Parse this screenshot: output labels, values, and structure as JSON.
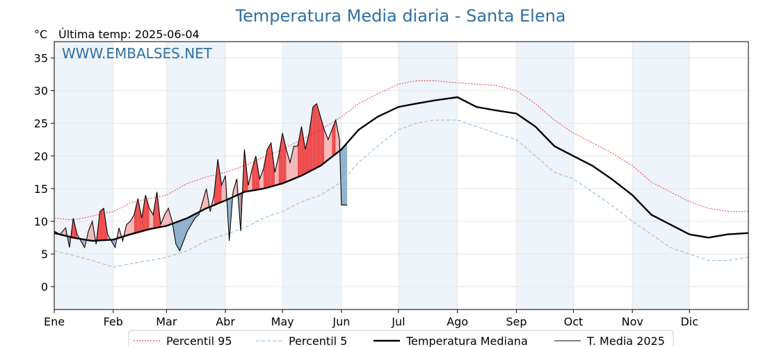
{
  "title": "Temperatura Media diaria - Santa Elena",
  "unit_label": "°C",
  "last_temp_label": "Última temp: 2025-06-04",
  "watermark": "WWW.EMBALSES.NET",
  "colors": {
    "p95": "#e8231f",
    "p5": "#9cc9dc",
    "median": "#000000",
    "current": "#000000",
    "above_fill": "#f4b8b9",
    "above_strong": "#ee4d4f",
    "below_fill": "#8fb1cd",
    "title": "#2f6fa3",
    "band": "#eef4fa"
  },
  "legend": [
    {
      "label": "Percentil 95",
      "style": "p95"
    },
    {
      "label": "Percentil 5",
      "style": "p5"
    },
    {
      "label": "Temperatura Mediana",
      "style": "median"
    },
    {
      "label": "T. Media 2025",
      "style": "current"
    }
  ],
  "chart_data": {
    "type": "line",
    "title": "Temperatura Media diaria - Santa Elena",
    "ylabel": "°C",
    "xlabel": "",
    "ylim": [
      -3.5,
      37.5
    ],
    "xlim": [
      0,
      365
    ],
    "yticks": [
      0,
      5,
      10,
      15,
      20,
      25,
      30,
      35
    ],
    "months": [
      "Ene",
      "Feb",
      "Mar",
      "Abr",
      "May",
      "Jun",
      "Jul",
      "Ago",
      "Sep",
      "Oct",
      "Nov",
      "Dic"
    ],
    "month_starts": [
      0,
      31,
      59,
      90,
      120,
      151,
      181,
      212,
      243,
      273,
      304,
      334
    ],
    "grid": true,
    "legend_position": "bottom",
    "series": [
      {
        "name": "Percentil 95",
        "style": "p95",
        "x": [
          0,
          10,
          20,
          31,
          40,
          50,
          59,
          70,
          80,
          90,
          100,
          110,
          120,
          130,
          140,
          151,
          160,
          170,
          181,
          190,
          200,
          212,
          222,
          232,
          243,
          253,
          263,
          273,
          283,
          293,
          304,
          314,
          324,
          334,
          344,
          354,
          365
        ],
        "y": [
          10.5,
          10.2,
          10.8,
          11.5,
          12.8,
          13.5,
          14.0,
          15.8,
          16.8,
          17.5,
          18.5,
          19.8,
          21.0,
          22.5,
          24.0,
          26.0,
          28.0,
          29.5,
          31.0,
          31.5,
          31.5,
          31.2,
          31.0,
          30.8,
          30.0,
          28.0,
          25.5,
          23.5,
          22.0,
          20.5,
          18.5,
          16.0,
          14.5,
          13.0,
          12.0,
          11.5,
          11.5
        ]
      },
      {
        "name": "Percentil 5",
        "style": "p5",
        "x": [
          0,
          10,
          20,
          31,
          40,
          50,
          59,
          70,
          80,
          90,
          100,
          110,
          120,
          130,
          140,
          151,
          160,
          170,
          181,
          190,
          200,
          212,
          222,
          232,
          243,
          253,
          263,
          273,
          283,
          293,
          304,
          314,
          324,
          334,
          344,
          354,
          365
        ],
        "y": [
          5.5,
          4.8,
          4.0,
          3.0,
          3.5,
          4.0,
          4.5,
          5.5,
          7.0,
          8.0,
          9.0,
          10.5,
          11.5,
          13.0,
          14.0,
          16.0,
          19.0,
          21.5,
          24.0,
          25.0,
          25.5,
          25.5,
          24.5,
          23.5,
          22.5,
          20.0,
          17.5,
          16.5,
          14.5,
          12.5,
          10.0,
          8.0,
          6.0,
          5.0,
          4.0,
          4.0,
          4.5
        ]
      },
      {
        "name": "Temperatura Mediana",
        "style": "median",
        "x": [
          0,
          10,
          20,
          31,
          40,
          50,
          59,
          70,
          80,
          90,
          100,
          110,
          120,
          130,
          140,
          151,
          160,
          170,
          181,
          190,
          200,
          212,
          222,
          232,
          243,
          253,
          263,
          273,
          283,
          293,
          304,
          314,
          324,
          334,
          344,
          354,
          365
        ],
        "y": [
          8.2,
          7.5,
          7.0,
          7.2,
          8.0,
          8.8,
          9.3,
          10.5,
          12.0,
          13.2,
          14.5,
          15.0,
          15.8,
          17.0,
          18.5,
          21.0,
          24.0,
          26.0,
          27.5,
          28.0,
          28.5,
          29.0,
          27.5,
          27.0,
          26.5,
          24.5,
          21.5,
          20.0,
          18.5,
          16.5,
          14.0,
          11.0,
          9.5,
          8.0,
          7.5,
          8.0,
          8.2
        ]
      },
      {
        "name": "T. Media 2025",
        "style": "current",
        "x": [
          0,
          3,
          6,
          8,
          10,
          12,
          14,
          16,
          18,
          20,
          22,
          24,
          26,
          28,
          30,
          32,
          34,
          36,
          38,
          40,
          42,
          44,
          46,
          48,
          50,
          52,
          54,
          56,
          58,
          60,
          62,
          64,
          66,
          68,
          70,
          72,
          74,
          76,
          78,
          80,
          82,
          84,
          86,
          88,
          90,
          92,
          94,
          96,
          98,
          100,
          102,
          104,
          106,
          108,
          110,
          112,
          114,
          116,
          118,
          120,
          122,
          124,
          126,
          128,
          130,
          132,
          134,
          136,
          138,
          140,
          142,
          144,
          146,
          148,
          150,
          151,
          152,
          153,
          154
        ],
        "y": [
          8.5,
          8.0,
          9.0,
          6.0,
          10.5,
          8.0,
          7.0,
          6.0,
          8.5,
          10.0,
          6.5,
          11.5,
          12.0,
          8.0,
          7.0,
          6.0,
          9.0,
          7.0,
          9.5,
          10.0,
          11.0,
          13.5,
          10.5,
          14.0,
          12.0,
          11.0,
          14.5,
          9.5,
          11.0,
          12.0,
          10.0,
          6.5,
          5.5,
          7.0,
          8.5,
          9.5,
          10.5,
          11.0,
          13.0,
          15.0,
          11.5,
          14.0,
          19.5,
          15.5,
          17.0,
          7.0,
          14.5,
          16.5,
          8.5,
          21.0,
          15.5,
          18.0,
          20.0,
          16.5,
          18.0,
          21.0,
          22.0,
          17.5,
          20.0,
          23.5,
          21.0,
          19.0,
          21.5,
          21.5,
          24.5,
          21.0,
          23.5,
          27.5,
          28.0,
          26.0,
          24.0,
          22.5,
          24.0,
          25.5,
          22.5,
          12.5,
          12.5,
          12.5,
          12.5
        ]
      }
    ]
  }
}
